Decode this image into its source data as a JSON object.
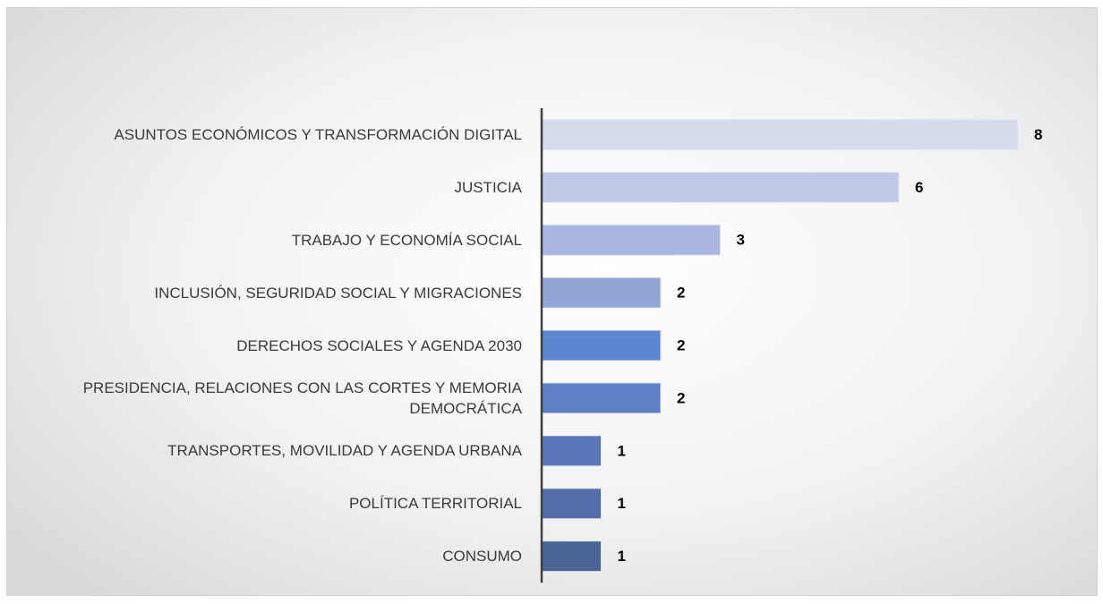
{
  "chart_data": {
    "type": "bar",
    "orientation": "horizontal",
    "categories": [
      "ASUNTOS ECONÓMICOS Y TRANSFORMACIÓN DIGITAL",
      "JUSTICIA",
      "TRABAJO Y ECONOMÍA SOCIAL",
      "INCLUSIÓN, SEGURIDAD SOCIAL Y MIGRACIONES",
      "DERECHOS SOCIALES Y AGENDA 2030",
      "PRESIDENCIA, RELACIONES CON LAS CORTES Y MEMORIA DEMOCRÁTICA",
      "TRANSPORTES, MOVILIDAD Y AGENDA URBANA",
      "POLÍTICA TERRITORIAL",
      "CONSUMO"
    ],
    "values": [
      8,
      6,
      3,
      2,
      2,
      2,
      1,
      1,
      1
    ],
    "colors": [
      "#d5daed",
      "#c1c9e6",
      "#aab7de",
      "#93a4d6",
      "#5b87d0",
      "#5e80c4",
      "#5877b8",
      "#536ea9",
      "#4b6496"
    ]
  }
}
